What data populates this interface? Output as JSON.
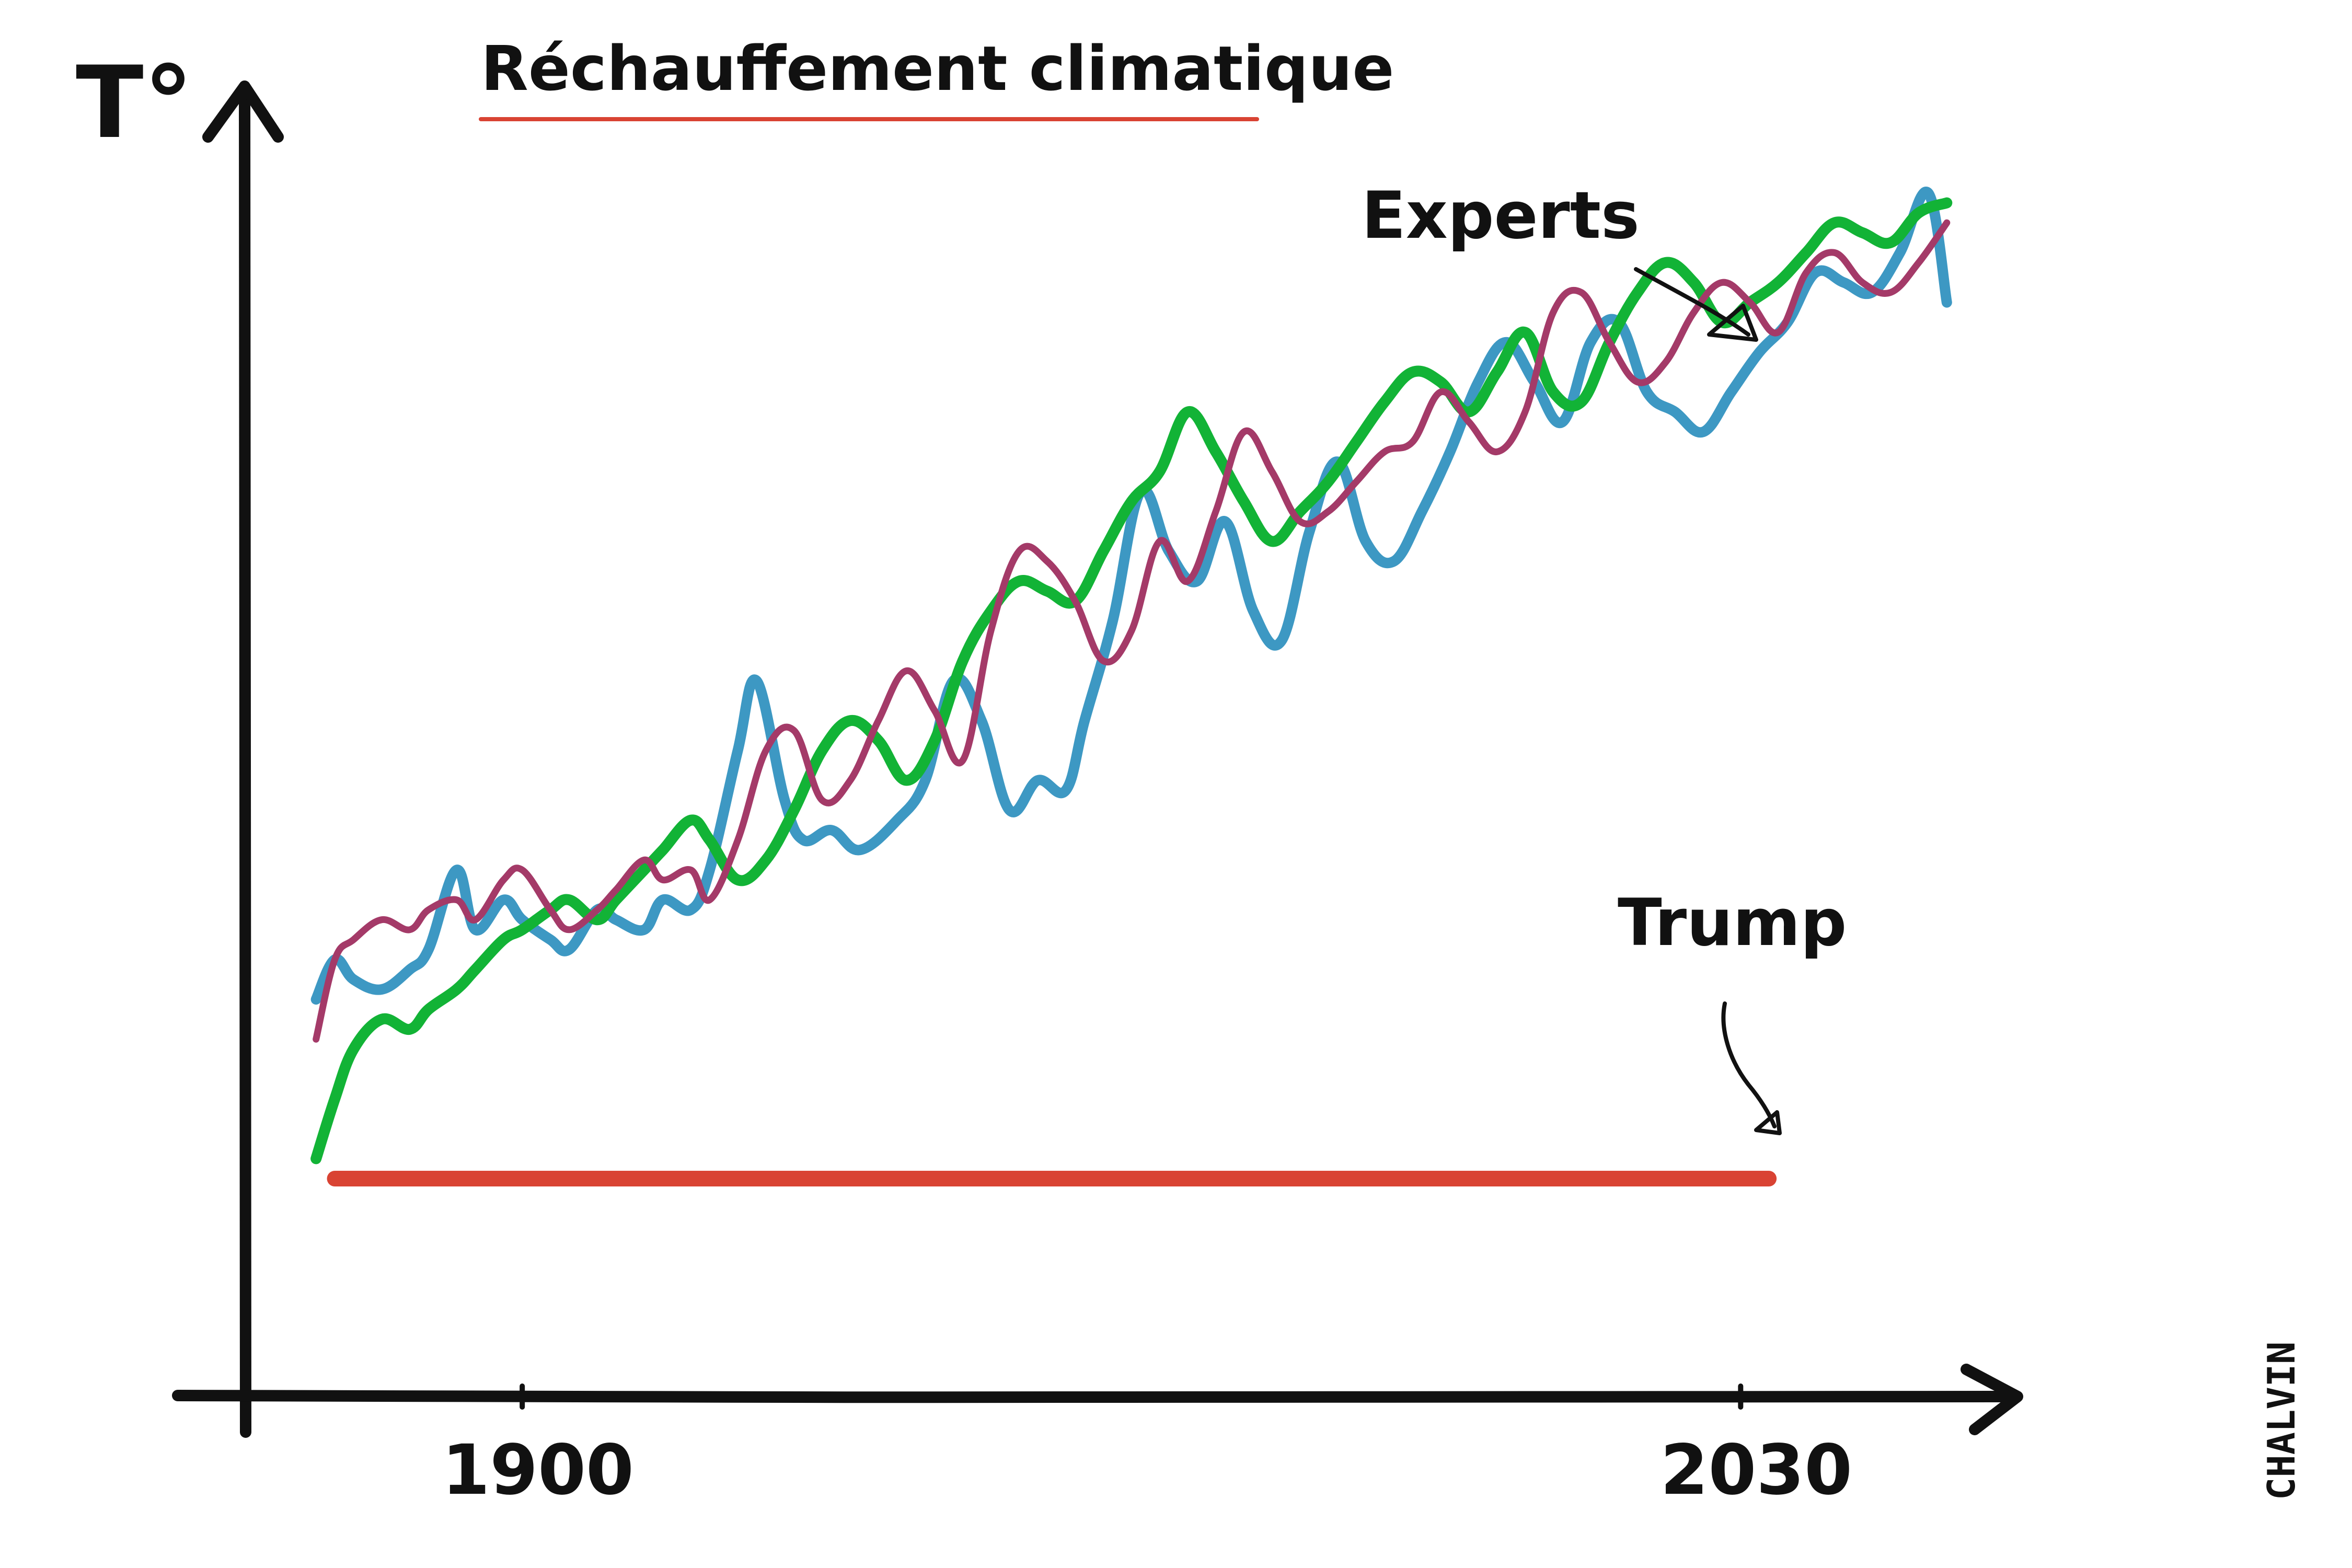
{
  "chart_data": {
    "type": "line",
    "title": "Réchauffement climatique",
    "ylabel": "T°",
    "xlabel": "",
    "xlim": [
      1873,
      2064
    ],
    "ylim": [
      0,
      100
    ],
    "x_ticks": [
      {
        "value": 1900,
        "label": "1900"
      },
      {
        "value": 2030,
        "label": "2030"
      }
    ],
    "grid": false,
    "series": [
      {
        "name": "Experts (blue)",
        "group": "Experts",
        "color": "#3d98c3",
        "x": [
          1878,
          1880,
          1882,
          1885,
          1888,
          1890,
          1893,
          1895,
          1898,
          1900,
          1903,
          1905,
          1908,
          1910,
          1913,
          1915,
          1918,
          1920,
          1923,
          1925,
          1928,
          1930,
          1933,
          1936,
          1940,
          1943,
          1946,
          1949,
          1952,
          1955,
          1958,
          1960,
          1963,
          1966,
          1969,
          1972,
          1975,
          1978,
          1981,
          1984,
          1987,
          1990,
          1993,
          1996,
          1999,
          2002,
          2005,
          2008,
          2011,
          2014,
          2017,
          2020,
          2023,
          2026,
          2029,
          2032,
          2035,
          2038,
          2041,
          2044,
          2047,
          2050,
          2052
        ],
        "y": [
          18,
          22,
          20,
          19,
          21,
          23,
          31,
          25,
          28,
          26,
          24,
          23,
          27,
          26,
          25,
          28,
          27,
          31,
          43,
          50,
          38,
          34,
          35,
          33,
          36,
          40,
          50,
          46,
          37,
          40,
          39,
          46,
          56,
          69,
          63,
          60,
          66,
          57,
          54,
          65,
          72,
          64,
          62,
          67,
          73,
          80,
          84,
          80,
          76,
          84,
          86,
          79,
          77,
          75,
          79,
          83,
          86,
          91,
          90,
          89,
          93,
          99,
          88
        ]
      },
      {
        "name": "Experts (green)",
        "group": "Experts",
        "color": "#12b336",
        "x": [
          1878,
          1880,
          1882,
          1885,
          1888,
          1890,
          1893,
          1895,
          1898,
          1900,
          1903,
          1905,
          1908,
          1910,
          1913,
          1915,
          1918,
          1920,
          1923,
          1926,
          1929,
          1932,
          1935,
          1938,
          1941,
          1944,
          1947,
          1950,
          1953,
          1956,
          1959,
          1962,
          1965,
          1968,
          1971,
          1974,
          1977,
          1980,
          1983,
          1986,
          1989,
          1992,
          1995,
          1998,
          2001,
          2004,
          2007,
          2010,
          2013,
          2016,
          2019,
          2022,
          2025,
          2028,
          2031,
          2034,
          2037,
          2040,
          2043,
          2046,
          2049,
          2052
        ],
        "y": [
          2,
          8,
          13,
          16,
          15,
          17,
          19,
          21,
          24,
          25,
          27,
          28,
          26,
          28,
          31,
          33,
          36,
          34,
          30,
          32,
          37,
          43,
          46,
          44,
          40,
          44,
          52,
          57,
          60,
          59,
          58,
          63,
          68,
          71,
          77,
          73,
          68,
          64,
          67,
          70,
          74,
          78,
          81,
          80,
          77,
          81,
          85,
          79,
          78,
          84,
          89,
          92,
          90,
          86,
          88,
          90,
          93,
          96,
          95,
          94,
          97,
          98
        ]
      },
      {
        "name": "Experts (purple)",
        "group": "Experts",
        "color": "#a43a68",
        "x": [
          1878,
          1880,
          1882,
          1885,
          1888,
          1890,
          1893,
          1895,
          1898,
          1900,
          1903,
          1905,
          1908,
          1910,
          1913,
          1915,
          1918,
          1920,
          1923,
          1926,
          1929,
          1932,
          1935,
          1938,
          1941,
          1944,
          1947,
          1950,
          1953,
          1956,
          1959,
          1962,
          1965,
          1968,
          1971,
          1974,
          1977,
          1980,
          1983,
          1986,
          1989,
          1992,
          1995,
          1998,
          2001,
          2004,
          2007,
          2010,
          2013,
          2016,
          2019,
          2022,
          2025,
          2028,
          2031,
          2034,
          2037,
          2040,
          2043,
          2046,
          2049,
          2052
        ],
        "y": [
          14,
          22,
          24,
          26,
          25,
          27,
          28,
          26,
          30,
          31,
          27,
          25,
          27,
          29,
          32,
          30,
          31,
          28,
          34,
          43,
          45,
          38,
          40,
          46,
          51,
          47,
          42,
          55,
          63,
          62,
          58,
          52,
          55,
          64,
          60,
          67,
          75,
          71,
          66,
          67,
          70,
          73,
          74,
          79,
          76,
          73,
          77,
          87,
          89,
          84,
          80,
          82,
          87,
          90,
          88,
          85,
          91,
          93,
          90,
          89,
          92,
          96
        ]
      },
      {
        "name": "Trump",
        "group": "Trump",
        "color": "#d94333",
        "x": [
          1880,
          2033
        ],
        "y": [
          0,
          0
        ]
      }
    ],
    "annotations": [
      {
        "text": "Experts",
        "points_to": "Experts"
      },
      {
        "text": "Trump",
        "points_to": "Trump"
      }
    ]
  },
  "signature": "CHALVIN"
}
